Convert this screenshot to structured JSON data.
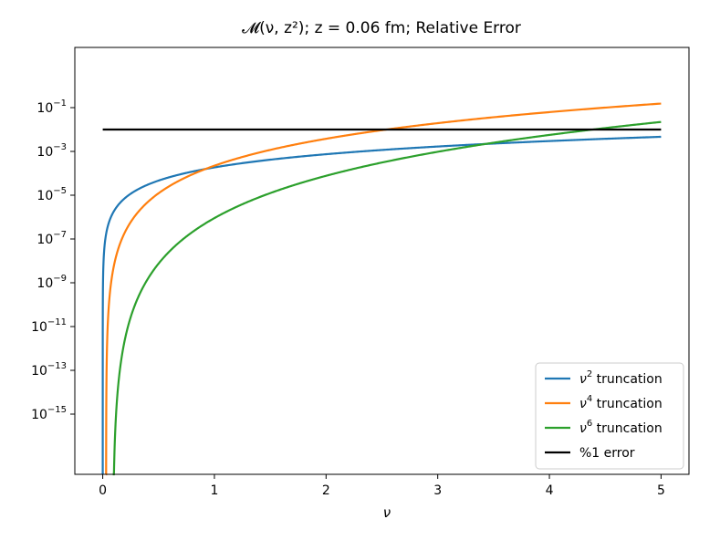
{
  "chart_data": {
    "type": "line",
    "title": "𝓜(ν, z²); z = 0.06 fm; Relative Error",
    "xlabel": "ν",
    "ylabel": "",
    "xlim": [
      -0.25,
      5.25
    ],
    "ylim_log10": [
      -17.75,
      1.75
    ],
    "yscale": "log",
    "xticks": [
      0,
      1,
      2,
      3,
      4,
      5
    ],
    "yticks": [
      {
        "exp": -1,
        "label": "10−1"
      },
      {
        "exp": -3,
        "label": "10−3"
      },
      {
        "exp": -5,
        "label": "10−5"
      },
      {
        "exp": -7,
        "label": "10−7"
      },
      {
        "exp": -9,
        "label": "10−9"
      },
      {
        "exp": -11,
        "label": "10−11"
      },
      {
        "exp": -13,
        "label": "10−13"
      },
      {
        "exp": -15,
        "label": "10−15"
      }
    ],
    "series": [
      {
        "name": "ν² truncation",
        "color": "#1f77b4",
        "kind": "power",
        "coef_log10": -3.73,
        "power": 2,
        "x_start": 0.0,
        "x_end": 5.0
      },
      {
        "name": "ν⁴ truncation",
        "color": "#ff7f0e",
        "kind": "power",
        "coef_log10": -3.6,
        "power": 4,
        "x_start": 0.03,
        "x_end": 5.0
      },
      {
        "name": "ν⁶ truncation",
        "color": "#2ca02c",
        "kind": "power",
        "coef_log10": -5.8,
        "power": 6,
        "x_start": 0.09,
        "x_end": 5.0
      },
      {
        "name": "%1 error",
        "color": "#000000",
        "kind": "constant",
        "y": 0.01,
        "x_start": 0.0,
        "x_end": 5.0
      }
    ],
    "legend": {
      "placement": "lower-right",
      "entries": [
        {
          "base": "ν",
          "sup": "2",
          "rest": " truncation",
          "color": "#1f77b4"
        },
        {
          "base": "ν",
          "sup": "4",
          "rest": " truncation",
          "color": "#ff7f0e"
        },
        {
          "base": "ν",
          "sup": "6",
          "rest": " truncation",
          "color": "#2ca02c"
        },
        {
          "base": "",
          "sup": "",
          "rest": "%1 error",
          "color": "#000000"
        }
      ]
    },
    "grid": false
  }
}
